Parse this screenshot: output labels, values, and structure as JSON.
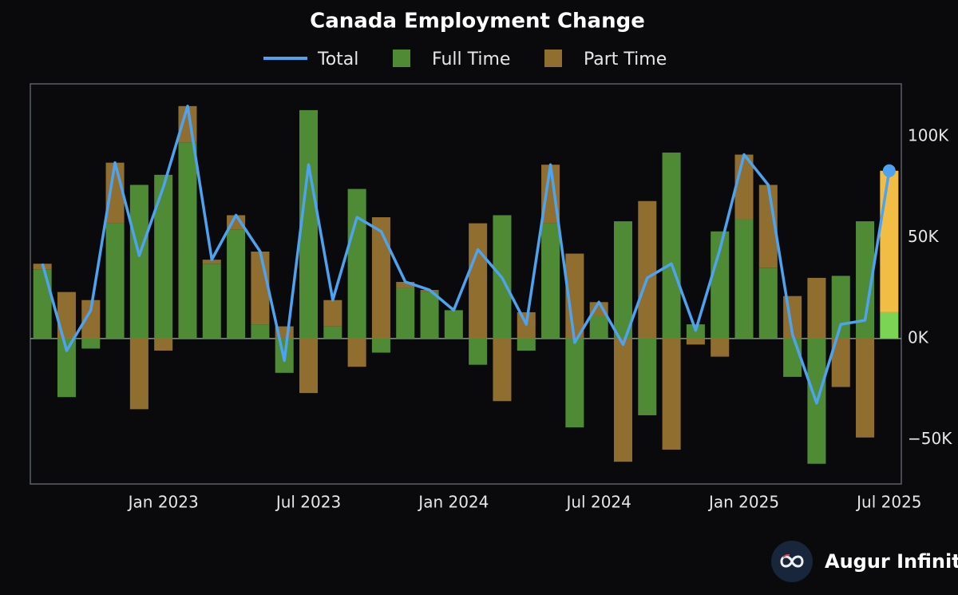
{
  "chart_data": {
    "type": "bar",
    "title": "Canada Employment Change",
    "categories": [
      null,
      null,
      null,
      null,
      null,
      "Jan 2023",
      null,
      null,
      null,
      null,
      null,
      "Jul 2023",
      null,
      null,
      null,
      null,
      null,
      "Jan 2024",
      null,
      null,
      null,
      null,
      null,
      "Jul 2024",
      null,
      null,
      null,
      null,
      null,
      "Jan 2025",
      null,
      null,
      null,
      null,
      null,
      "Jul 2025"
    ],
    "series": [
      {
        "name": "Total",
        "kind": "line",
        "color": "#4da3ef",
        "values": [
          37,
          -6,
          14,
          87,
          41,
          75,
          115,
          39,
          61,
          43,
          -11,
          86,
          19,
          60,
          53,
          28,
          24,
          14,
          44,
          30,
          7,
          86,
          -2,
          18,
          -3,
          30,
          37,
          4,
          44,
          91,
          76,
          2,
          -32,
          7,
          9,
          83
        ]
      },
      {
        "name": "Full Time",
        "kind": "bar",
        "color": "#4f8a35",
        "highlight_color": "#7bd452",
        "values": [
          34,
          -29,
          -5,
          57,
          76,
          81,
          97,
          37,
          54,
          7,
          -17,
          113,
          6,
          74,
          -7,
          25,
          23,
          14,
          -13,
          61,
          -6,
          57,
          -44,
          11,
          58,
          -38,
          92,
          7,
          53,
          59,
          35,
          -19,
          -62,
          31,
          58,
          13
        ]
      },
      {
        "name": "Part Time",
        "kind": "bar",
        "color": "#8f6e2f",
        "highlight_color": "#f2bd44",
        "values": [
          3,
          23,
          19,
          30,
          -35,
          -6,
          18,
          2,
          7,
          36,
          6,
          -27,
          13,
          -14,
          60,
          3,
          1,
          0,
          57,
          -31,
          13,
          29,
          42,
          7,
          -61,
          68,
          -55,
          -3,
          -9,
          32,
          41,
          21,
          30,
          -24,
          -49,
          70
        ]
      }
    ],
    "highlight_index": 35,
    "ylim": [
      -72,
      126
    ],
    "yticks": [
      {
        "value": -50,
        "label": "−50K"
      },
      {
        "value": 0,
        "label": "0K"
      },
      {
        "value": 50,
        "label": "50K"
      },
      {
        "value": 100,
        "label": "100K"
      }
    ],
    "brand": "Augur Infinity"
  }
}
